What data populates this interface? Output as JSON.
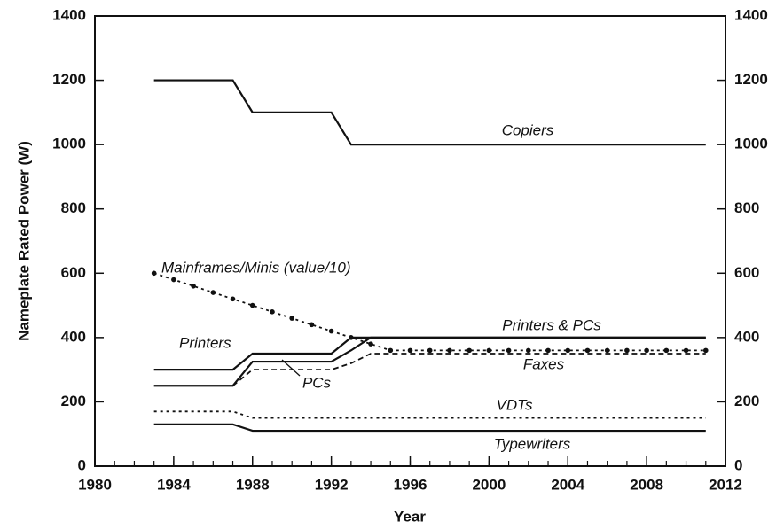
{
  "chart_data": {
    "type": "line",
    "x_label": "Year",
    "y_label": "Nameplate Rated Power (W)",
    "x": [
      1983,
      1984,
      1985,
      1986,
      1987,
      1988,
      1989,
      1990,
      1991,
      1992,
      1993,
      1994,
      1995,
      1996,
      1997,
      1998,
      1999,
      2000,
      2001,
      2002,
      2003,
      2004,
      2005,
      2006,
      2007,
      2008,
      2009,
      2010,
      2011
    ],
    "xlim": [
      1980,
      2012
    ],
    "xticks": [
      1980,
      1984,
      1988,
      1992,
      1996,
      2000,
      2004,
      2008,
      2012
    ],
    "ylim": [
      0,
      1400
    ],
    "yticks": [
      0,
      200,
      400,
      600,
      800,
      1000,
      1200,
      1400
    ],
    "y2lim": [
      0,
      1400
    ],
    "y2ticks": [
      0,
      200,
      400,
      600,
      800,
      1000,
      1200,
      1400
    ],
    "annotations": [
      "Printers & PCs"
    ],
    "series": [
      {
        "name": "Copiers",
        "color": "#111111",
        "dash": "solid",
        "values": [
          1200,
          1200,
          1200,
          1200,
          1200,
          1100,
          1100,
          1100,
          1100,
          1100,
          1000,
          1000,
          1000,
          1000,
          1000,
          1000,
          1000,
          1000,
          1000,
          1000,
          1000,
          1000,
          1000,
          1000,
          1000,
          1000,
          1000,
          1000,
          1000
        ]
      },
      {
        "name": "Mainframes/Minis (value/10)",
        "color": "#111111",
        "dash": "dotted",
        "marker": "dot",
        "values": [
          600,
          580,
          560,
          540,
          520,
          500,
          480,
          460,
          440,
          420,
          400,
          380,
          360,
          360,
          360,
          360,
          360,
          360,
          360,
          360,
          360,
          360,
          360,
          360,
          360,
          360,
          360,
          360,
          360
        ]
      },
      {
        "name": "Printers",
        "color": "#111111",
        "dash": "solid",
        "values": [
          300,
          300,
          300,
          300,
          300,
          350,
          350,
          350,
          350,
          350,
          400,
          400,
          400,
          400,
          400,
          400,
          400,
          400,
          400,
          400,
          400,
          400,
          400,
          400,
          400,
          400,
          400,
          400,
          400
        ]
      },
      {
        "name": "Faxes",
        "color": "#111111",
        "dash": "dashed",
        "values": [
          null,
          null,
          null,
          null,
          250,
          300,
          300,
          300,
          300,
          300,
          320,
          350,
          350,
          350,
          350,
          350,
          350,
          350,
          350,
          350,
          350,
          350,
          350,
          350,
          350,
          350,
          350,
          350,
          350
        ]
      },
      {
        "name": "PCs",
        "color": "#111111",
        "dash": "solid",
        "values": [
          250,
          250,
          250,
          250,
          250,
          325,
          325,
          325,
          325,
          325,
          360,
          400,
          400,
          400,
          400,
          400,
          400,
          400,
          400,
          400,
          400,
          400,
          400,
          400,
          400,
          400,
          400,
          400,
          400
        ]
      },
      {
        "name": "VDTs",
        "color": "#111111",
        "dash": "dotted",
        "values": [
          170,
          170,
          170,
          170,
          170,
          150,
          150,
          150,
          150,
          150,
          150,
          150,
          150,
          150,
          150,
          150,
          150,
          150,
          150,
          150,
          150,
          150,
          150,
          150,
          150,
          150,
          150,
          150,
          150
        ]
      },
      {
        "name": "Typewriters",
        "color": "#111111",
        "dash": "solid",
        "values": [
          130,
          130,
          130,
          130,
          130,
          110,
          110,
          110,
          110,
          110,
          110,
          110,
          110,
          110,
          110,
          110,
          110,
          110,
          110,
          110,
          110,
          110,
          110,
          110,
          110,
          110,
          110,
          110,
          110
        ]
      }
    ]
  }
}
